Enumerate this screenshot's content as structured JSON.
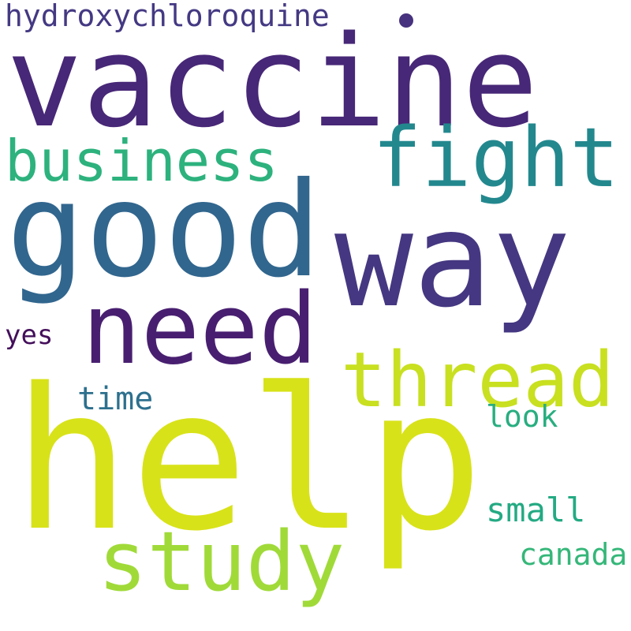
{
  "words": {
    "hydroxychloroquine": {
      "text": "hydroxychloroquine",
      "color": "#443983"
    },
    "vaccine": {
      "text": "vaccine",
      "color": "#472777"
    },
    "fight": {
      "text": "fight",
      "color": "#23888e"
    },
    "business": {
      "text": "business",
      "color": "#2db27d"
    },
    "good": {
      "text": "good",
      "color": "#31668e"
    },
    "way": {
      "text": "way",
      "color": "#453781"
    },
    "need": {
      "text": "need",
      "color": "#481f70"
    },
    "yes": {
      "text": "yes",
      "color": "#440f5b"
    },
    "thread": {
      "text": "thread",
      "color": "#c8e020"
    },
    "time": {
      "text": "time",
      "color": "#2d708e"
    },
    "look": {
      "text": "look",
      "color": "#28ae80"
    },
    "help": {
      "text": "help",
      "color": "#d8e219"
    },
    "small": {
      "text": "small",
      "color": "#24aa83"
    },
    "study": {
      "text": "study",
      "color": "#a0da39"
    },
    "canada": {
      "text": "canada",
      "color": "#35b779"
    }
  },
  "stray_dot": {
    "color": "#46327e"
  }
}
